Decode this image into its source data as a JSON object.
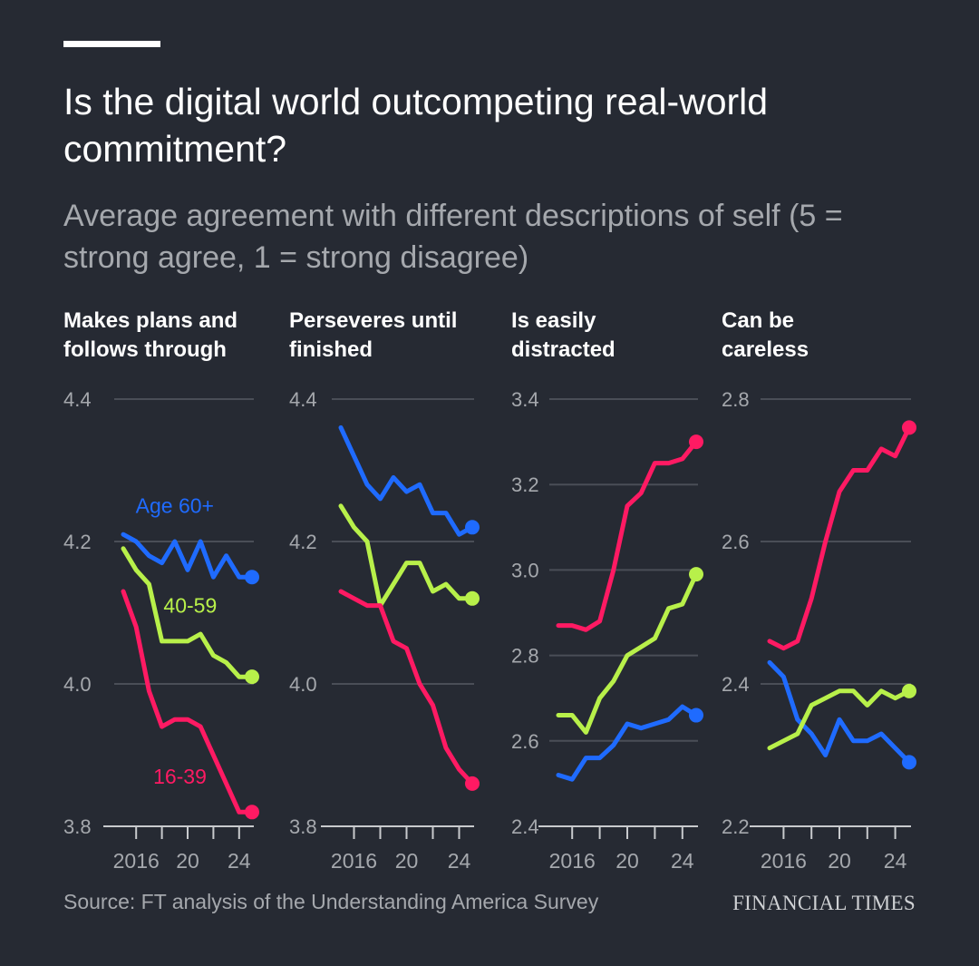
{
  "header": {
    "title": "Is the digital world outcompeting real-world commitment?",
    "subtitle": "Average agreement with different descriptions of self (5 = strong agree, 1 = strong disagree)"
  },
  "footer": {
    "source": "Source: FT analysis of the Understanding America Survey",
    "brand": "FINANCIAL TIMES"
  },
  "colors": {
    "background": "#262a33",
    "age_60_plus": "#1f6bff",
    "age_40_59": "#b8f04a",
    "age_16_39": "#ff1a63",
    "grid": "#4a4e57",
    "muted_text": "#a5a8ad"
  },
  "chart_data": [
    {
      "type": "line",
      "title_lines": [
        "Makes plans and",
        "follows through"
      ],
      "x": [
        2015,
        2016,
        2017,
        2018,
        2019,
        2020,
        2021,
        2022,
        2023,
        2024,
        2025
      ],
      "x_tick_labels": [
        "2016",
        "20",
        "24"
      ],
      "x_tick_label_years": [
        2016,
        2020,
        2024
      ],
      "ylim": [
        3.8,
        4.4
      ],
      "yticks": [
        3.8,
        4.0,
        4.2,
        4.4
      ],
      "ytick_labels": [
        "3.8",
        "4.0",
        "4.2",
        "4.4"
      ],
      "series_labels": [
        {
          "series": "Age 60+",
          "text": "Age 60+",
          "x": 2019,
          "y": 4.24
        },
        {
          "series": "40-59",
          "text": "40-59",
          "x": 2020.2,
          "y": 4.1
        },
        {
          "series": "16-39",
          "text": "16-39",
          "x": 2019.4,
          "y": 3.86
        }
      ],
      "series": [
        {
          "name": "Age 60+",
          "values": [
            4.21,
            4.2,
            4.18,
            4.17,
            4.2,
            4.16,
            4.2,
            4.15,
            4.18,
            4.15,
            4.15
          ]
        },
        {
          "name": "40-59",
          "values": [
            4.19,
            4.16,
            4.14,
            4.06,
            4.06,
            4.06,
            4.07,
            4.04,
            4.03,
            4.01,
            4.01
          ]
        },
        {
          "name": "16-39",
          "values": [
            4.13,
            4.08,
            3.99,
            3.94,
            3.95,
            3.95,
            3.94,
            3.9,
            3.86,
            3.82,
            3.82
          ]
        }
      ]
    },
    {
      "type": "line",
      "title_lines": [
        "Perseveres until",
        "finished"
      ],
      "x": [
        2015,
        2016,
        2017,
        2018,
        2019,
        2020,
        2021,
        2022,
        2023,
        2024,
        2025
      ],
      "x_tick_labels": [
        "2016",
        "20",
        "24"
      ],
      "x_tick_label_years": [
        2016,
        2020,
        2024
      ],
      "ylim": [
        3.8,
        4.4
      ],
      "yticks": [
        3.8,
        4.0,
        4.2,
        4.4
      ],
      "ytick_labels": [
        "3.8",
        "4.0",
        "4.2",
        "4.4"
      ],
      "series_labels": [],
      "series": [
        {
          "name": "Age 60+",
          "values": [
            4.36,
            4.32,
            4.28,
            4.26,
            4.29,
            4.27,
            4.28,
            4.24,
            4.24,
            4.21,
            4.22
          ]
        },
        {
          "name": "40-59",
          "values": [
            4.25,
            4.22,
            4.2,
            4.11,
            4.14,
            4.17,
            4.17,
            4.13,
            4.14,
            4.12,
            4.12
          ]
        },
        {
          "name": "16-39",
          "values": [
            4.13,
            4.12,
            4.11,
            4.11,
            4.06,
            4.05,
            4.0,
            3.97,
            3.91,
            3.88,
            3.86
          ]
        }
      ]
    },
    {
      "type": "line",
      "title_lines": [
        "Is easily",
        "distracted"
      ],
      "x": [
        2015,
        2016,
        2017,
        2018,
        2019,
        2020,
        2021,
        2022,
        2023,
        2024,
        2025
      ],
      "x_tick_labels": [
        "2016",
        "20",
        "24"
      ],
      "x_tick_label_years": [
        2016,
        2020,
        2024
      ],
      "ylim": [
        2.4,
        3.4
      ],
      "yticks": [
        2.4,
        2.6,
        2.8,
        3.0,
        3.2,
        3.4
      ],
      "ytick_labels": [
        "2.4",
        "2.6",
        "2.8",
        "3.0",
        "3.2",
        "3.4"
      ],
      "series_labels": [],
      "series": [
        {
          "name": "Age 60+",
          "values": [
            2.52,
            2.51,
            2.56,
            2.56,
            2.59,
            2.64,
            2.63,
            2.64,
            2.65,
            2.68,
            2.66
          ]
        },
        {
          "name": "40-59",
          "values": [
            2.66,
            2.66,
            2.62,
            2.7,
            2.74,
            2.8,
            2.82,
            2.84,
            2.91,
            2.92,
            2.99
          ]
        },
        {
          "name": "16-39",
          "values": [
            2.87,
            2.87,
            2.86,
            2.88,
            3.0,
            3.15,
            3.18,
            3.25,
            3.25,
            3.26,
            3.3
          ]
        }
      ]
    },
    {
      "type": "line",
      "title_lines": [
        "Can be",
        "careless"
      ],
      "x": [
        2015,
        2016,
        2017,
        2018,
        2019,
        2020,
        2021,
        2022,
        2023,
        2024,
        2025
      ],
      "x_tick_labels": [
        "2016",
        "20",
        "24"
      ],
      "x_tick_label_years": [
        2016,
        2020,
        2024
      ],
      "ylim": [
        2.2,
        2.8
      ],
      "yticks": [
        2.2,
        2.4,
        2.6,
        2.8
      ],
      "ytick_labels": [
        "2.2",
        "2.4",
        "2.6",
        "2.8"
      ],
      "series_labels": [],
      "series": [
        {
          "name": "Age 60+",
          "values": [
            2.43,
            2.41,
            2.35,
            2.33,
            2.3,
            2.35,
            2.32,
            2.32,
            2.33,
            2.31,
            2.29
          ]
        },
        {
          "name": "40-59",
          "values": [
            2.31,
            2.32,
            2.33,
            2.37,
            2.38,
            2.39,
            2.39,
            2.37,
            2.39,
            2.38,
            2.39
          ]
        },
        {
          "name": "16-39",
          "values": [
            2.46,
            2.45,
            2.46,
            2.52,
            2.6,
            2.67,
            2.7,
            2.7,
            2.73,
            2.72,
            2.76
          ]
        }
      ]
    }
  ]
}
